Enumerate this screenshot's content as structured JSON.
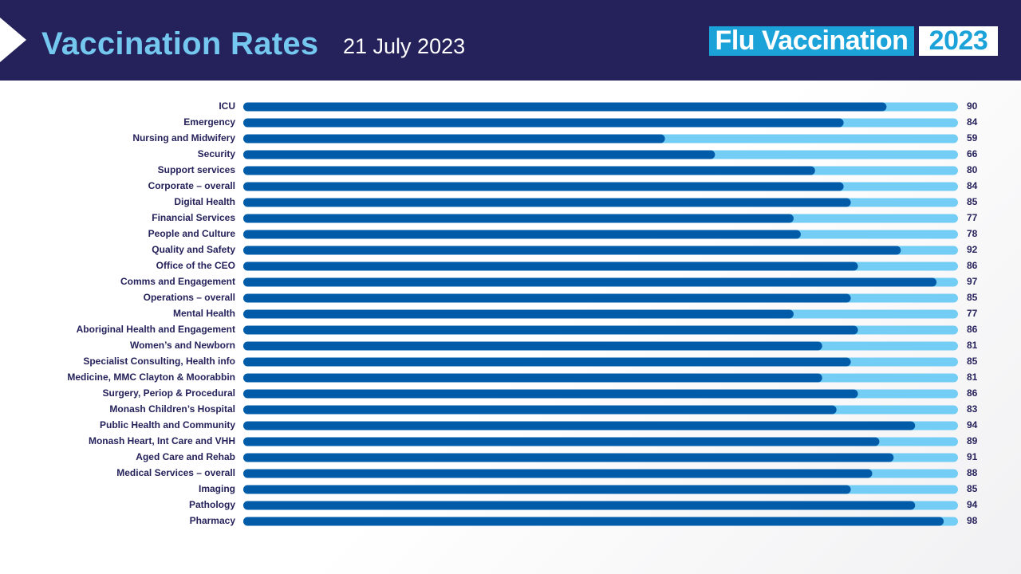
{
  "header": {
    "title": "Vaccination Rates",
    "date": "21 July 2023",
    "logo": {
      "main": "Flu Vaccination",
      "year": "2023"
    }
  },
  "colors": {
    "header_bg": "#25225b",
    "title": "#74c7ee",
    "bar_value": "#005ca9",
    "bar_track": "#74cdf5",
    "label_text": "#25225b",
    "logo_bg": "#1aa2d9"
  },
  "chart_data": {
    "type": "bar",
    "orientation": "horizontal",
    "xlim": [
      0,
      100
    ],
    "grid": false,
    "legend": "none",
    "categories": [
      "ICU",
      "Emergency",
      "Nursing  and Midwifery",
      "Security",
      "Support services",
      "Corporate – overall",
      "Digital Health",
      "Financial Services",
      "People and Culture",
      "Quality and Safety",
      "Office of the CEO",
      "Comms and Engagement",
      "Operations – overall",
      "Mental Health",
      "Aboriginal Health and Engagement",
      "Women’s and Newborn",
      "Specialist Consulting,  Health info",
      "Medicine, MMC Clayton & Moorabbin",
      "Surgery, Periop & Procedural",
      "Monash Children’s Hospital",
      "Public Health and Community",
      "Monash Heart, Int Care and VHH",
      "Aged Care and Rehab",
      "Medical Services – overall",
      "Imaging",
      "Pathology",
      "Pharmacy"
    ],
    "values": [
      90,
      84,
      59,
      66,
      80,
      84,
      85,
      77,
      78,
      92,
      86,
      97,
      85,
      77,
      86,
      81,
      85,
      81,
      86,
      83,
      94,
      89,
      91,
      88,
      85,
      94,
      98
    ]
  }
}
